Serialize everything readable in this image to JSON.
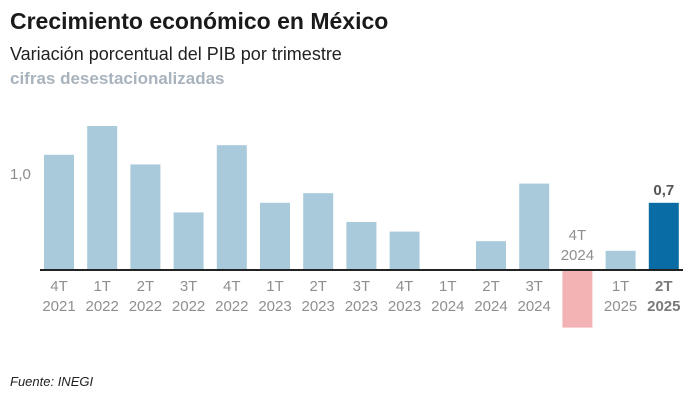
{
  "header": {
    "title": "Crecimiento económico en México",
    "subtitle": "Variación porcentual del PIB por trimestre",
    "note": "cifras desestacionalizadas"
  },
  "footer": {
    "source": "Fuente: INEGI"
  },
  "colors": {
    "bar": "#a9cada",
    "bar_highlight": "#0a6ca5",
    "bar_negative": "#f3b3b4",
    "axis": "#222222"
  },
  "chart_data": {
    "type": "bar",
    "categories": [
      [
        "4T",
        "2021"
      ],
      [
        "1T",
        "2022"
      ],
      [
        "2T",
        "2022"
      ],
      [
        "3T",
        "2022"
      ],
      [
        "4T",
        "2022"
      ],
      [
        "1T",
        "2023"
      ],
      [
        "2T",
        "2023"
      ],
      [
        "3T",
        "2023"
      ],
      [
        "4T",
        "2023"
      ],
      [
        "1T",
        "2024"
      ],
      [
        "2T",
        "2024"
      ],
      [
        "3T",
        "2024"
      ],
      [
        "4T",
        "2024"
      ],
      [
        "1T",
        "2025"
      ],
      [
        "2T",
        "2025"
      ]
    ],
    "values": [
      1.2,
      1.5,
      1.1,
      0.6,
      1.3,
      0.7,
      0.8,
      0.5,
      0.4,
      0.0,
      0.3,
      0.9,
      -0.6,
      0.2,
      0.7
    ],
    "highlight_index": 14,
    "highlight_label": "0,7",
    "y_ticks": [
      {
        "value": 1.0,
        "label": "1,0"
      }
    ],
    "ylim": [
      -0.6,
      1.6
    ],
    "grid": false,
    "legend": "none"
  }
}
